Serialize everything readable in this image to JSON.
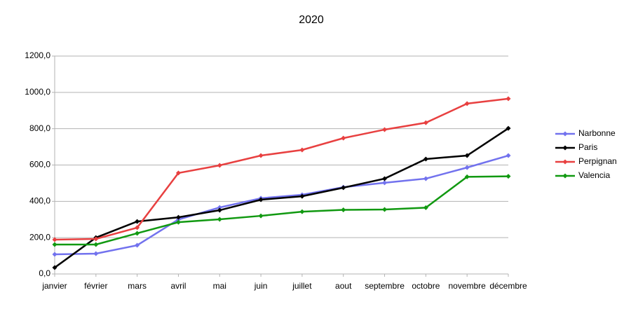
{
  "chart_data": {
    "type": "line",
    "title": "2020",
    "categories": [
      "janvier",
      "février",
      "mars",
      "avril",
      "mai",
      "juin",
      "juillet",
      "aout",
      "septembre",
      "octobre",
      "novembre",
      "décembre"
    ],
    "series": [
      {
        "name": "Narbonne",
        "color": "#7272ee",
        "values": [
          108,
          112,
          158,
          300,
          366,
          417,
          436,
          478,
          502,
          525,
          586,
          652
        ]
      },
      {
        "name": "Paris",
        "color": "#000000",
        "values": [
          35,
          200,
          289,
          312,
          351,
          409,
          428,
          475,
          525,
          633,
          652,
          802
        ]
      },
      {
        "name": "Perpignan",
        "color": "#e84040",
        "values": [
          189,
          193,
          255,
          556,
          598,
          652,
          683,
          748,
          795,
          833,
          938,
          965
        ]
      },
      {
        "name": "Valencia",
        "color": "#119911",
        "values": [
          162,
          162,
          224,
          285,
          301,
          320,
          343,
          353,
          355,
          365,
          535,
          538
        ]
      }
    ],
    "ylim": [
      0,
      1200
    ],
    "yticks": [
      {
        "value": 0,
        "label": "0,0"
      },
      {
        "value": 200,
        "label": "200,0"
      },
      {
        "value": 400,
        "label": "400,0"
      },
      {
        "value": 600,
        "label": "600,0"
      },
      {
        "value": 800,
        "label": "800,0"
      },
      {
        "value": 1000,
        "label": "1000,0"
      },
      {
        "value": 1200,
        "label": "1200,0"
      }
    ],
    "grid": true,
    "legend": "right"
  }
}
